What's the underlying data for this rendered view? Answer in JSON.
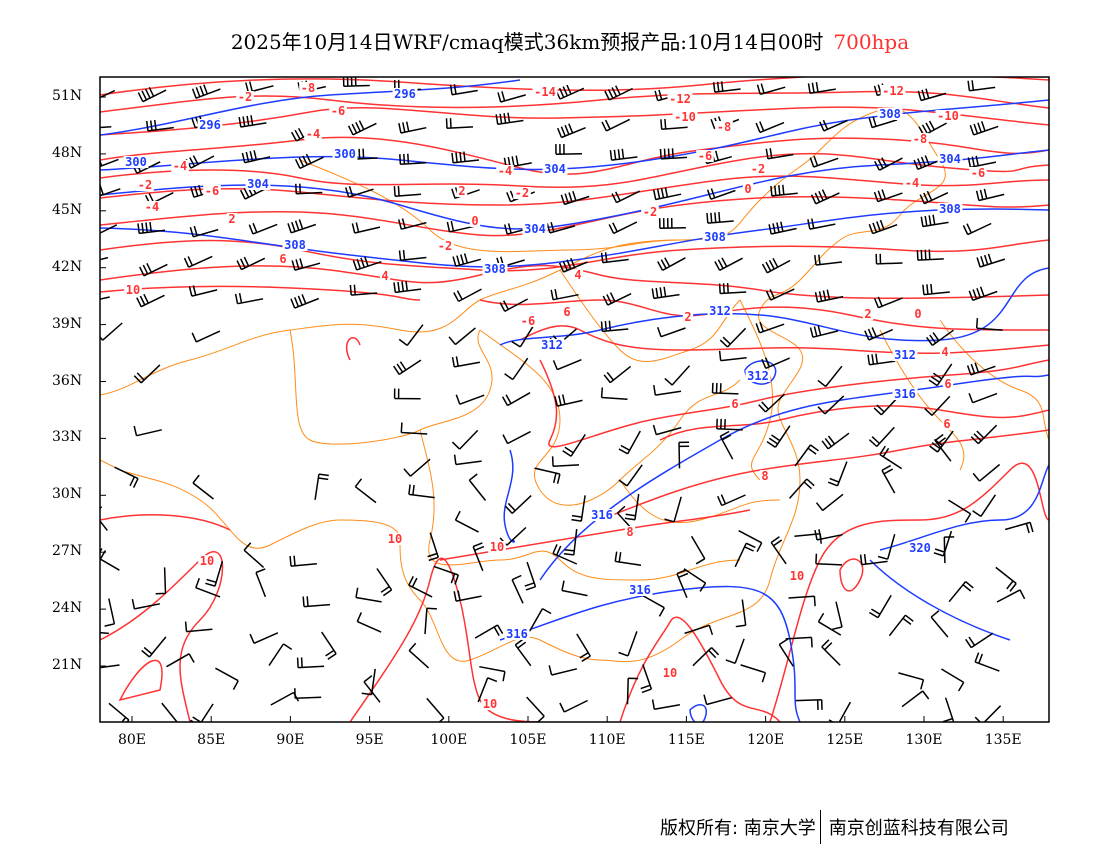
{
  "title": {
    "main": "2025年10月14日WRF/cmaq模式36km预报产品:10月14日00时",
    "level": "700hpa"
  },
  "axes": {
    "lat_labels": [
      "51N",
      "48N",
      "45N",
      "42N",
      "39N",
      "36N",
      "33N",
      "30N",
      "27N",
      "24N",
      "21N"
    ],
    "lon_labels": [
      "80E",
      "85E",
      "90E",
      "95E",
      "100E",
      "105E",
      "110E",
      "115E",
      "120E",
      "125E",
      "130E",
      "135E"
    ]
  },
  "colors": {
    "temperature": "#ff3333",
    "height": "#1e3cff",
    "border": "#ff8c1a",
    "wind": "#000000"
  },
  "height_labels": [
    "296",
    "296",
    "300",
    "300",
    "308",
    "304",
    "304",
    "304",
    "308",
    "308",
    "308",
    "308",
    "312",
    "312",
    "312",
    "312",
    "316",
    "316",
    "316",
    "316",
    "320",
    "304"
  ],
  "temp_labels": [
    "-8",
    "-6",
    "-4",
    "-14",
    "-12",
    "-10",
    "-12",
    "-10",
    "-8",
    "-6",
    "-4",
    "-2",
    "-4",
    "-2",
    "-2",
    "-4",
    "-6",
    "-8",
    "0",
    "-2",
    "2",
    "0",
    "-2",
    "4",
    "6",
    "10",
    "4",
    "6",
    "2",
    "2",
    "0",
    "4",
    "6",
    "6",
    "6",
    "8",
    "8",
    "10",
    "10",
    "10",
    "10",
    "10",
    "10",
    "-4",
    "-2",
    "-6",
    "2",
    "-6"
  ],
  "footer": {
    "owner1": "版权所有: 南京大学",
    "owner2": "南京创蓝科技有限公司"
  }
}
